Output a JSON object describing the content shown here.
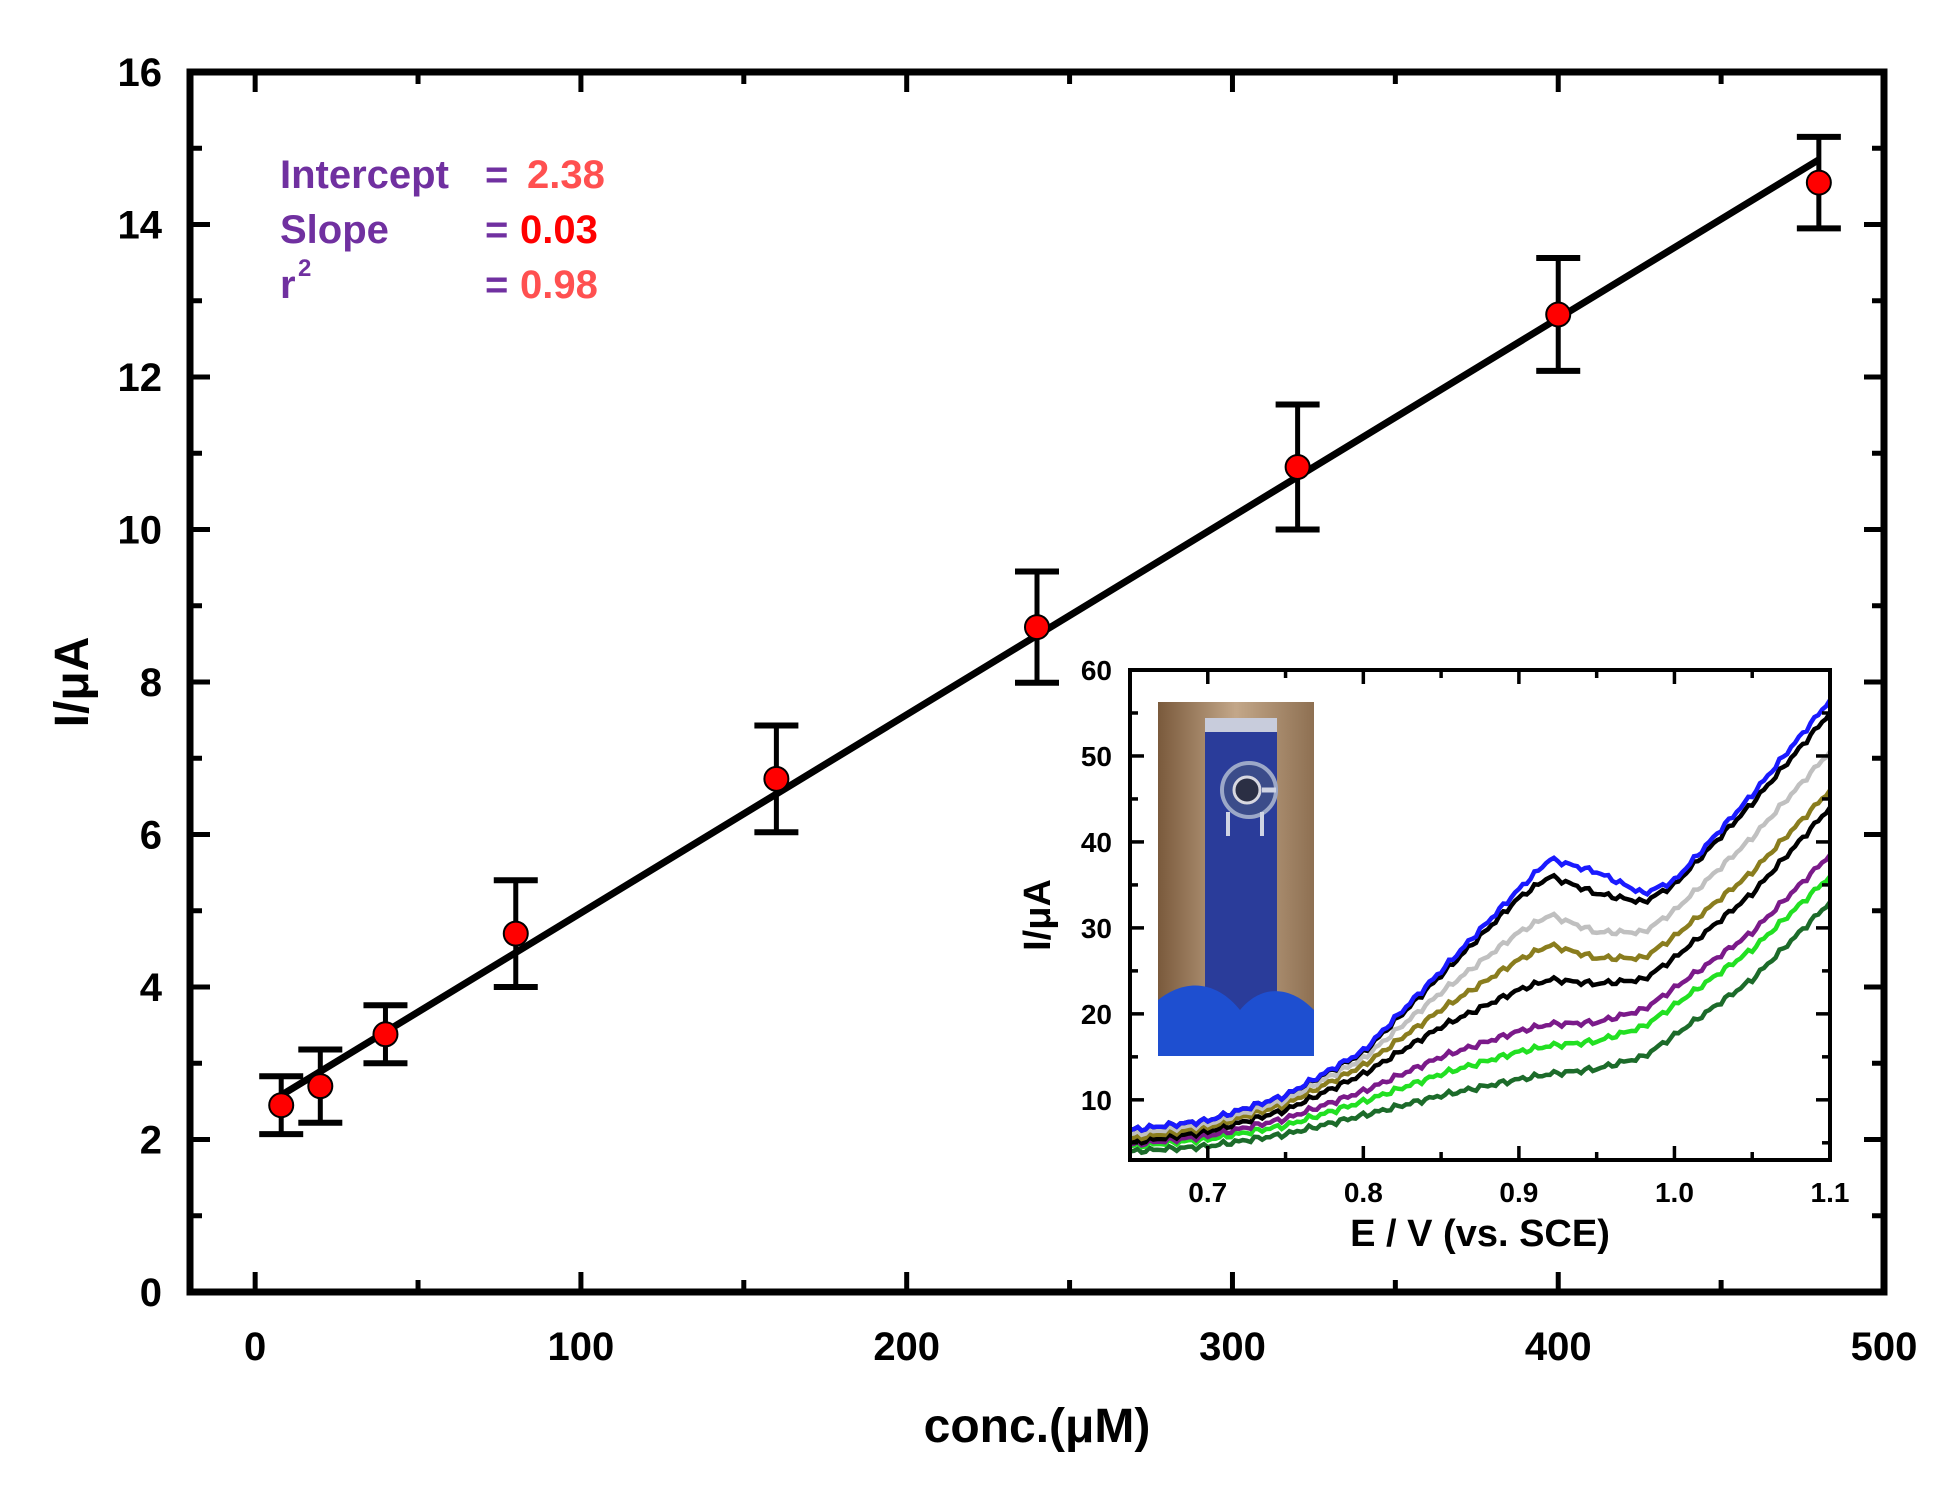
{
  "chart_data": [
    {
      "type": "scatter",
      "name": "calibration",
      "xlabel": "conc.(μM)",
      "ylabel": "I/μA",
      "xlim": [
        -20,
        500
      ],
      "ylim": [
        0,
        16
      ],
      "x_ticks": [
        "0",
        "100",
        "200",
        "300",
        "400",
        "500"
      ],
      "y_ticks": [
        "0",
        "2",
        "4",
        "6",
        "8",
        "10",
        "12",
        "14",
        "16"
      ],
      "points": [
        {
          "x": 8,
          "y": 2.45,
          "err": 0.38
        },
        {
          "x": 20,
          "y": 2.7,
          "err": 0.48
        },
        {
          "x": 40,
          "y": 3.38,
          "err": 0.38
        },
        {
          "x": 80,
          "y": 4.7,
          "err": 0.7
        },
        {
          "x": 160,
          "y": 6.73,
          "err": 0.7
        },
        {
          "x": 240,
          "y": 8.72,
          "err": 0.73
        },
        {
          "x": 320,
          "y": 10.82,
          "err": 0.82
        },
        {
          "x": 400,
          "y": 12.82,
          "err": 0.74
        },
        {
          "x": 480,
          "y": 14.55,
          "err": 0.6
        }
      ],
      "fit_line": {
        "x": [
          8,
          480
        ],
        "y": [
          2.58,
          14.85
        ]
      },
      "stats": [
        {
          "label": "Intercept",
          "eq": "=",
          "value": "2.38",
          "label_color": "#7030a0",
          "value_color": "#ff5050"
        },
        {
          "label": "Slope",
          "eq": "=",
          "value": "0.03",
          "label_color": "#7030a0",
          "value_color": "#ff0000"
        },
        {
          "label": "r",
          "sup": "2",
          "eq": "=",
          "value": "0.98",
          "label_color": "#7030a0",
          "value_color": "#ff5050"
        }
      ],
      "colors": {
        "marker": "#ff0000",
        "line": "#000000"
      }
    },
    {
      "type": "line",
      "name": "inset-voltammograms",
      "xlabel": "E / V (vs. SCE)",
      "ylabel": "I/μA",
      "xlim": [
        0.65,
        1.1
      ],
      "ylim": [
        3,
        60
      ],
      "x_ticks": [
        "0.7",
        "0.8",
        "0.9",
        "1.0",
        "1.1"
      ],
      "y_ticks": [
        "10",
        "20",
        "30",
        "40",
        "50",
        "60"
      ],
      "x": [
        0.65,
        0.7,
        0.75,
        0.8,
        0.85,
        0.9,
        0.92,
        0.95,
        0.98,
        1.0,
        1.05,
        1.1
      ],
      "series": [
        {
          "name": "curve-1",
          "color": "#1c6b2a",
          "values": [
            4.0,
            4.6,
            6.0,
            8.2,
            10.5,
            12.4,
            13.0,
            13.6,
            15.0,
            17.5,
            24.0,
            33.0
          ]
        },
        {
          "name": "curve-2",
          "color": "#22e022",
          "values": [
            4.6,
            5.4,
            7.0,
            9.8,
            13.0,
            15.6,
            16.3,
            16.8,
            18.5,
            21.0,
            27.5,
            36.0
          ]
        },
        {
          "name": "curve-3",
          "color": "#7b1a8a",
          "values": [
            4.8,
            5.8,
            7.8,
            11.0,
            15.0,
            18.0,
            18.8,
            19.0,
            20.5,
            23.0,
            29.5,
            38.5
          ]
        },
        {
          "name": "curve-4",
          "color": "#000000",
          "values": [
            5.0,
            6.3,
            8.8,
            13.0,
            18.5,
            22.8,
            24.0,
            23.5,
            24.0,
            26.5,
            34.0,
            44.0
          ]
        },
        {
          "name": "curve-5",
          "color": "#8a7d1e",
          "values": [
            5.5,
            6.8,
            9.5,
            14.0,
            20.5,
            26.3,
            28.0,
            26.5,
            26.5,
            29.0,
            36.5,
            46.0
          ]
        },
        {
          "name": "curve-6",
          "color": "#c0c0c0",
          "values": [
            6.0,
            7.2,
            10.0,
            14.8,
            22.5,
            29.5,
            31.5,
            29.5,
            29.5,
            32.0,
            40.5,
            50.5
          ]
        },
        {
          "name": "curve-7",
          "color": "#000000",
          "values": [
            6.5,
            7.6,
            10.5,
            15.5,
            24.5,
            33.5,
            36.0,
            34.0,
            33.0,
            35.0,
            44.5,
            55.0
          ]
        },
        {
          "name": "curve-8",
          "color": "#1a1aff",
          "values": [
            6.5,
            7.6,
            10.5,
            15.7,
            25.0,
            34.5,
            38.0,
            36.5,
            34.0,
            35.5,
            45.5,
            56.5
          ]
        }
      ]
    }
  ]
}
